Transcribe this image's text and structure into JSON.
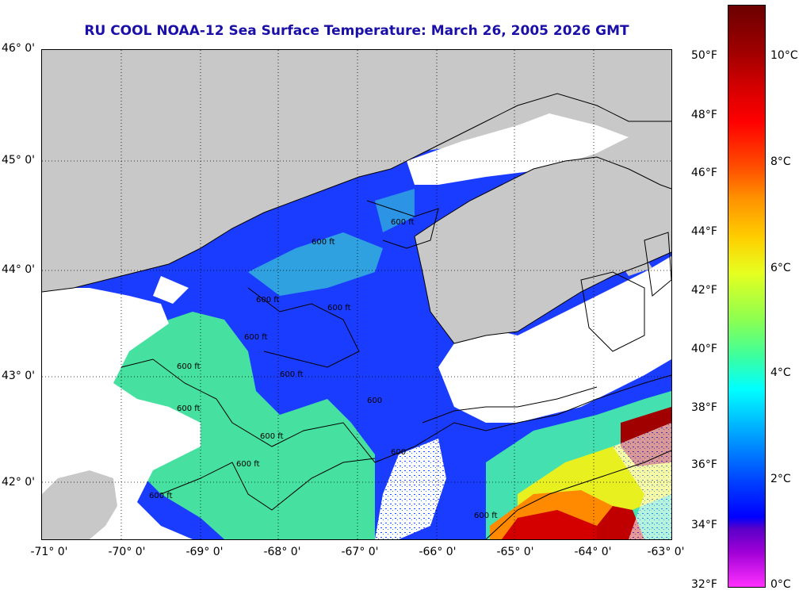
{
  "title": "RU COOL  NOAA-12  Sea Surface Temperature:  March 26, 2005 2026 GMT",
  "lat_labels": [
    "46° 0'",
    "45° 0'",
    "44° 0'",
    "43° 0'",
    "42° 0'"
  ],
  "lon_labels": [
    "-71° 0'",
    "-70° 0'",
    "-69° 0'",
    "-68° 0'",
    "-67° 0'",
    "-66° 0'",
    "-65° 0'",
    "-64° 0'",
    "-63° 0'"
  ],
  "fahrenheit_labels": [
    "50°F",
    "48°F",
    "46°F",
    "44°F",
    "42°F",
    "40°F",
    "38°F",
    "36°F",
    "34°F",
    "32°F"
  ],
  "celsius_labels": [
    "10°C",
    "8°C",
    "6°C",
    "4°C",
    "2°C",
    "0°C"
  ],
  "contour_labels": [
    "600 ft",
    "600 ft",
    "600 ft",
    "600 ft",
    "600 ft",
    "600 ft",
    "600 ft",
    "600",
    "600 ft",
    "600 ft",
    "600 ft",
    "600 ft",
    "600 ft",
    "600"
  ],
  "colors": {
    "land": "#c8c8c8",
    "cloud": "#ffffff",
    "cold_water": "#1a3cff",
    "cool_water": "#46e1a0",
    "warm_water": "#ffb400",
    "hot_water": "#a00000",
    "title": "#1a0fa8"
  }
}
